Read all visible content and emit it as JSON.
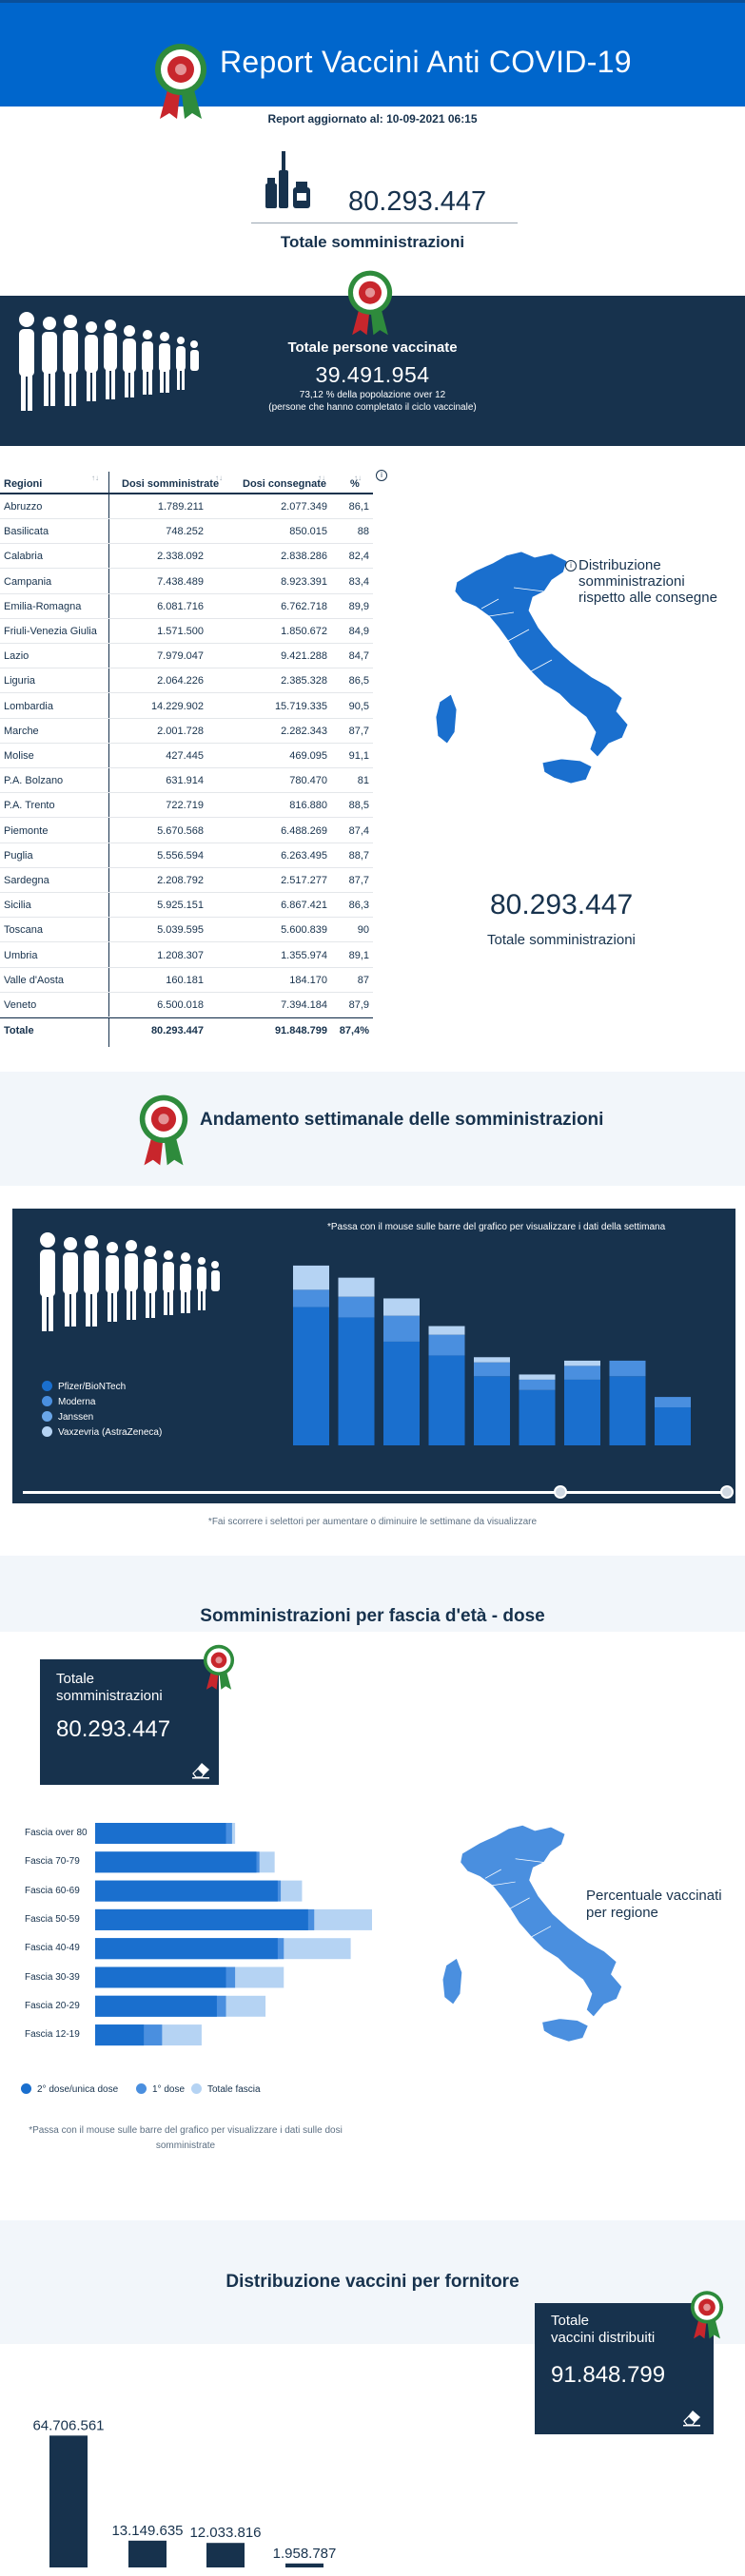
{
  "header": {
    "title": "Report Vaccini Anti COVID-19"
  },
  "updated": {
    "text": "Report aggiornato al: 10-09-2021 06:15"
  },
  "total_administrations": {
    "value": "80.293.447",
    "caption": "Totale somministrazioni"
  },
  "vaccinated": {
    "title": "Totale persone vaccinate",
    "value": "39.491.954",
    "percent_text": "73,12 % della popolazione over 12",
    "note": "(persone che hanno completato il ciclo vaccinale)"
  },
  "table": {
    "headers": {
      "region": "Regioni",
      "administered": "Dosi somministrate",
      "delivered": "Dosi consegnate",
      "percent": "%"
    },
    "info_symbol": "i",
    "rows": [
      {
        "region": "Abruzzo",
        "administered": "1.789.211",
        "delivered": "2.077.349",
        "percent": "86,1"
      },
      {
        "region": "Basilicata",
        "administered": "748.252",
        "delivered": "850.015",
        "percent": "88"
      },
      {
        "region": "Calabria",
        "administered": "2.338.092",
        "delivered": "2.838.286",
        "percent": "82,4"
      },
      {
        "region": "Campania",
        "administered": "7.438.489",
        "delivered": "8.923.391",
        "percent": "83,4"
      },
      {
        "region": "Emilia-Romagna",
        "administered": "6.081.716",
        "delivered": "6.762.718",
        "percent": "89,9"
      },
      {
        "region": "Friuli-Venezia Giulia",
        "administered": "1.571.500",
        "delivered": "1.850.672",
        "percent": "84,9"
      },
      {
        "region": "Lazio",
        "administered": "7.979.047",
        "delivered": "9.421.288",
        "percent": "84,7"
      },
      {
        "region": "Liguria",
        "administered": "2.064.226",
        "delivered": "2.385.328",
        "percent": "86,5"
      },
      {
        "region": "Lombardia",
        "administered": "14.229.902",
        "delivered": "15.719.335",
        "percent": "90,5"
      },
      {
        "region": "Marche",
        "administered": "2.001.728",
        "delivered": "2.282.343",
        "percent": "87,7"
      },
      {
        "region": "Molise",
        "administered": "427.445",
        "delivered": "469.095",
        "percent": "91,1"
      },
      {
        "region": "P.A. Bolzano",
        "administered": "631.914",
        "delivered": "780.470",
        "percent": "81"
      },
      {
        "region": "P.A. Trento",
        "administered": "722.719",
        "delivered": "816.880",
        "percent": "88,5"
      },
      {
        "region": "Piemonte",
        "administered": "5.670.568",
        "delivered": "6.488.269",
        "percent": "87,4"
      },
      {
        "region": "Puglia",
        "administered": "5.556.594",
        "delivered": "6.263.495",
        "percent": "88,7"
      },
      {
        "region": "Sardegna",
        "administered": "2.208.792",
        "delivered": "2.517.277",
        "percent": "87,7"
      },
      {
        "region": "Sicilia",
        "administered": "5.925.151",
        "delivered": "6.867.421",
        "percent": "86,3"
      },
      {
        "region": "Toscana",
        "administered": "5.039.595",
        "delivered": "5.600.839",
        "percent": "90"
      },
      {
        "region": "Umbria",
        "administered": "1.208.307",
        "delivered": "1.355.974",
        "percent": "89,1"
      },
      {
        "region": "Valle d'Aosta",
        "administered": "160.181",
        "delivered": "184.170",
        "percent": "87"
      },
      {
        "region": "Veneto",
        "administered": "6.500.018",
        "delivered": "7.394.184",
        "percent": "87,9"
      }
    ],
    "total": {
      "region": "Totale",
      "administered": "80.293.447",
      "delivered": "91.848.799",
      "percent": "87,4%"
    }
  },
  "map_section": {
    "caption_line1": "Distribuzione",
    "caption_line2": "somministrazioni",
    "caption_line3": "rispetto alle consegne",
    "value": "80.293.447",
    "value_caption": "Totale somministrazioni"
  },
  "weekly": {
    "title": "Andamento settimanale delle somministrazioni",
    "hover_note": "*Passa con il mouse sulle barre del grafico per visualizzare i dati della settimana",
    "footer_note": "*Fai scorrere i selettori per aumentare o diminuire le settimane da visualizzare",
    "legend": [
      "Pfizer/BioNTech",
      "Moderna",
      "Janssen",
      "Vaxzevria (AstraZeneca)"
    ]
  },
  "chart_data": [
    {
      "type": "bar",
      "stacked": true,
      "title": "",
      "categories": [
        "",
        "",
        "",
        "",
        "",
        "",
        "",
        "",
        ""
      ],
      "series": [
        {
          "name": "Pfizer/BioNTech",
          "values": [
            80,
            74,
            60,
            52,
            40,
            32,
            38,
            40,
            22
          ]
        },
        {
          "name": "Moderna",
          "values": [
            10,
            12,
            15,
            12,
            8,
            6,
            8,
            9,
            6
          ]
        },
        {
          "name": "Janssen",
          "values": [
            0,
            0,
            0,
            0,
            0,
            0,
            0,
            0,
            0
          ]
        },
        {
          "name": "Vaxzevria (AstraZeneca)",
          "values": [
            14,
            11,
            10,
            5,
            3,
            3,
            3,
            0,
            0
          ]
        }
      ],
      "colors": [
        "#1a6fce",
        "#4a8fdf",
        "#6aa6e8",
        "#b5d3f3"
      ],
      "legend": "left"
    },
    {
      "type": "bar",
      "orientation": "horizontal",
      "title": "",
      "categories": [
        "Fascia over 80",
        "Fascia 70-79",
        "Fascia 60-69",
        "Fascia 50-59",
        "Fascia 40-49",
        "Fascia 30-39",
        "Fascia 20-29",
        "Fascia 12-19"
      ],
      "series": [
        {
          "name": "2° dose/unica dose",
          "values": [
            4.3,
            5.3,
            6.0,
            7.0,
            6.0,
            4.3,
            4.0,
            1.6
          ]
        },
        {
          "name": "1° dose",
          "values": [
            4.5,
            5.4,
            6.1,
            7.2,
            6.2,
            4.6,
            4.3,
            2.2
          ]
        },
        {
          "name": "Totale fascia",
          "values": [
            4.6,
            5.9,
            6.8,
            9.1,
            8.4,
            6.2,
            5.6,
            3.5
          ]
        }
      ],
      "colors": [
        "#1a6fce",
        "#4a8fdf",
        "#b5d3f3"
      ],
      "legend": "bottom"
    },
    {
      "type": "bar",
      "title": "",
      "categories": [
        "",
        "",
        "",
        ""
      ],
      "values": [
        64706561,
        13149635,
        12033816,
        1958787
      ],
      "value_labels": [
        "64.706.561",
        "13.149.635",
        "12.033.816",
        "1.958.787"
      ],
      "colors": [
        "#17324d"
      ]
    }
  ],
  "age_section": {
    "title": "Somministrazioni per fascia d'età - dose",
    "card_label_line1": "Totale",
    "card_label_line2": "somministrazioni",
    "card_value": "80.293.447",
    "legend": [
      "2° dose/unica dose",
      "1° dose",
      "Totale fascia"
    ],
    "note_line1": "*Passa con il mouse sulle barre del grafico per visualizzare i dati sulle dosi",
    "note_line2": "somministrate",
    "map_caption_line1": "Percentuale vaccinati",
    "map_caption_line2": "per regione"
  },
  "supplier_section": {
    "title": "Distribuzione vaccini per fornitore",
    "card_label_line1": "Totale",
    "card_label_line2": "vaccini distribuiti",
    "card_value": "91.848.799"
  }
}
